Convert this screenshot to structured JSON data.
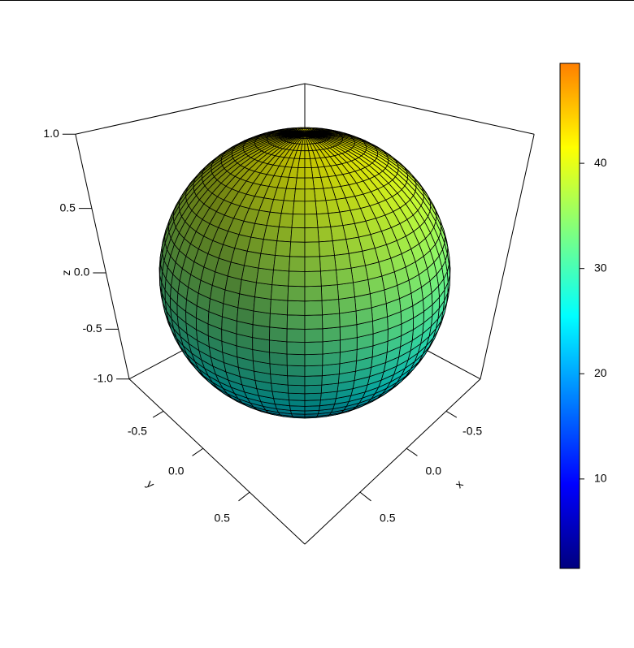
{
  "chart_data": {
    "type": "surface3d",
    "x_label": "x",
    "y_label": "y",
    "z_label": "z",
    "xlim": [
      -1,
      1
    ],
    "ylim": [
      -1,
      1
    ],
    "zlim": [
      -1,
      1
    ],
    "xticks": [
      -0.5,
      {
        "value": 0,
        "label": "0.0"
      },
      0.5
    ],
    "yticks": [
      -0.5,
      {
        "value": 0,
        "label": "0.0"
      },
      0.5
    ],
    "zticks": [
      {
        "value": -1,
        "label": "-1.0"
      },
      -0.5,
      {
        "value": 0,
        "label": "0.0"
      },
      0.5,
      {
        "value": 1,
        "label": "1.0"
      }
    ],
    "colorscale": [
      "#00007F",
      "#0000FF",
      "#007FFF",
      "#00FFFF",
      "#7FFF7F",
      "#FFFF00",
      "#FF7F00"
    ],
    "clim": [
      1.5,
      49.5
    ],
    "colorbar_ticks": [
      10,
      20,
      30,
      40
    ]
  }
}
